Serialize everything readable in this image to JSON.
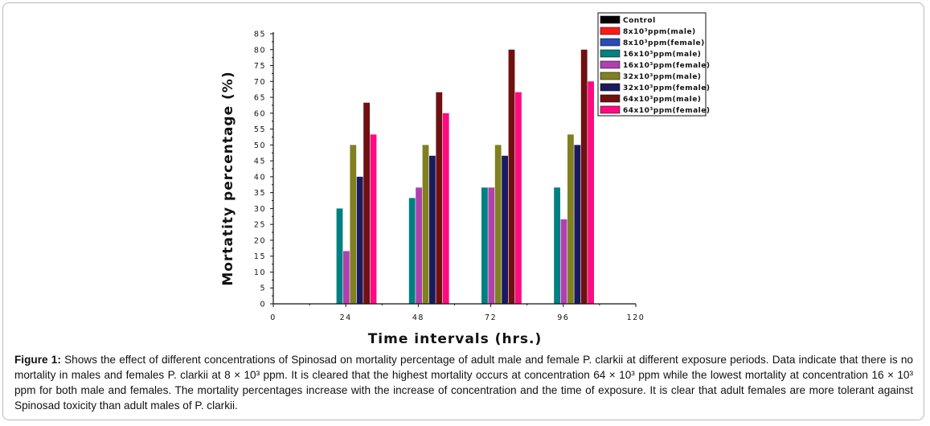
{
  "chart_data": {
    "type": "bar",
    "categories": [
      "24",
      "48",
      "72",
      "96"
    ],
    "x_ticks": [
      "0",
      "24",
      "48",
      "72",
      "96",
      "120"
    ],
    "y_ticks": [
      "0",
      "5",
      "10",
      "15",
      "20",
      "25",
      "30",
      "35",
      "40",
      "45",
      "50",
      "55",
      "60",
      "65",
      "70",
      "75",
      "80",
      "85"
    ],
    "xlabel": "Time intervals (hrs.)",
    "ylabel": "Mortatity percentage (%)",
    "xlim": [
      0,
      120
    ],
    "ylim": [
      0,
      85
    ],
    "grid": false,
    "legend_position": "top-right",
    "series": [
      {
        "name": "Control",
        "color": "#000000",
        "values": [
          0,
          0,
          0,
          0
        ]
      },
      {
        "name": "8x10³ppm(male)",
        "color": "#ff1a1a",
        "values": [
          0,
          0,
          0,
          0
        ]
      },
      {
        "name": "8x10³ppm(female)",
        "color": "#2a4bb8",
        "values": [
          0,
          0,
          0,
          0
        ]
      },
      {
        "name": "16x10³ppm(male)",
        "color": "#008080",
        "values": [
          30,
          33.3,
          36.6,
          36.6
        ]
      },
      {
        "name": "16x10³ppm(female)",
        "color": "#b040b0",
        "values": [
          16.6,
          36.6,
          36.6,
          26.6
        ]
      },
      {
        "name": "32x10³ppm(male)",
        "color": "#808020",
        "values": [
          50,
          50,
          50,
          53.3
        ]
      },
      {
        "name": "32x10³ppm(female)",
        "color": "#1a1a60",
        "values": [
          40,
          46.6,
          46.6,
          50
        ]
      },
      {
        "name": "64x10³ppm(male)",
        "color": "#701010",
        "values": [
          63.3,
          66.6,
          80,
          80
        ]
      },
      {
        "name": "64x10³ppm(female)",
        "color": "#ff0a80",
        "values": [
          53.3,
          60,
          66.6,
          70
        ]
      }
    ]
  },
  "caption": {
    "label": "Figure 1:",
    "text": "Shows the effect of different concentrations of Spinosad on mortality percentage of adult male and female P. clarkii at different exposure periods. Data indicate that there is no mortality in males and females P. clarkii at 8 × 10³ ppm. It is cleared that the highest mortality occurs at concentration 64 × 10³ ppm while the lowest mortality at concentration 16 × 10³ ppm for both male and females. The mortality percentages increase with the increase of concentration and the time of exposure. It is clear that adult females are more tolerant against Spinosad toxicity than adult males of P. clarkii."
  }
}
